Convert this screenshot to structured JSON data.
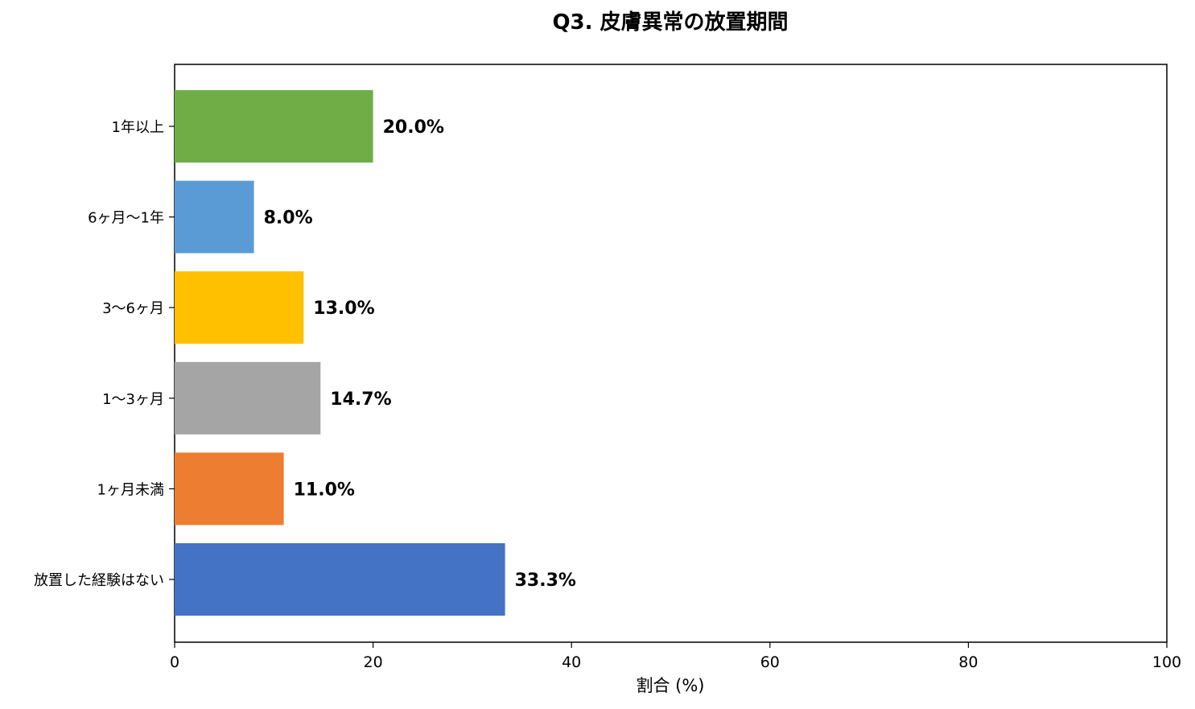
{
  "chart_data": {
    "type": "bar",
    "orientation": "horizontal",
    "title": "Q3. 皮膚異常の放置期間",
    "xlabel": "割合 (%)",
    "ylabel": "",
    "xlim": [
      0,
      100
    ],
    "xticks": [
      "0",
      "20",
      "40",
      "60",
      "80",
      "100"
    ],
    "grid": false,
    "categories": [
      "1年以上",
      "6ヶ月〜1年",
      "3〜6ヶ月",
      "1〜3ヶ月",
      "1ヶ月未満",
      "放置した経験はない"
    ],
    "values": [
      20.0,
      8.0,
      13.0,
      14.7,
      11.0,
      33.3
    ],
    "data_labels": [
      "20.0%",
      "8.0%",
      "13.0%",
      "14.7%",
      "11.0%",
      "33.3%"
    ],
    "colors": [
      "#70AD47",
      "#5B9BD5",
      "#FFC000",
      "#A5A5A5",
      "#ED7D31",
      "#4472C4"
    ]
  }
}
